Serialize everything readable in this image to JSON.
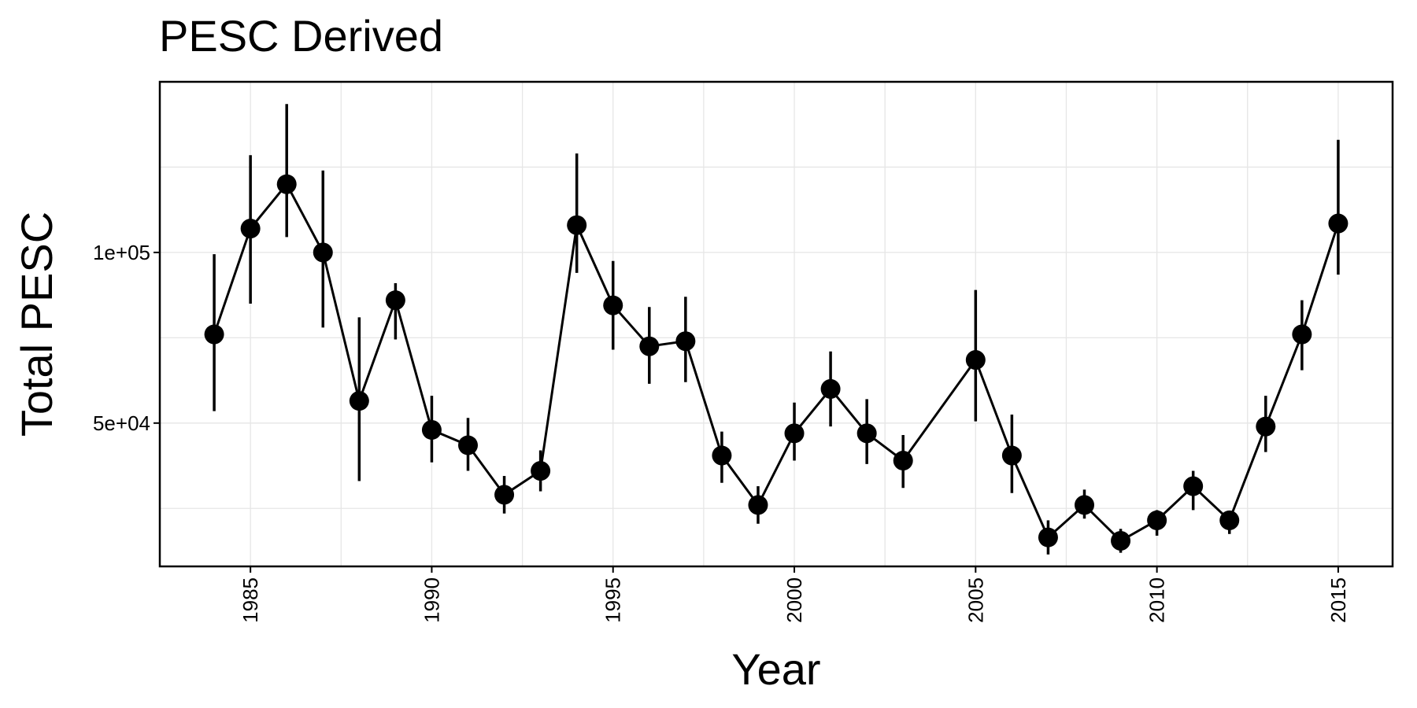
{
  "chart_data": {
    "type": "line",
    "title": "PESC Derived",
    "xlabel": "Year",
    "ylabel": "Total PESC",
    "xlim": [
      1982.5,
      2016.5
    ],
    "ylim": [
      8000,
      150000
    ],
    "x_ticks": [
      1985,
      1990,
      1995,
      2000,
      2005,
      2010,
      2015
    ],
    "y_ticks": [
      50000,
      100000
    ],
    "y_tick_labels": [
      "5e+04",
      "1e+05"
    ],
    "x_minor_gridlines": [
      1987.5,
      1992.5,
      1997.5,
      2002.5,
      2007.5,
      2012.5
    ],
    "y_minor_gridlines": [
      25000,
      75000,
      125000
    ],
    "grid": true,
    "legend": "none",
    "colors": {
      "series": "#000000",
      "grid": "#e6e6e6",
      "background": "#ffffff"
    },
    "series": [
      {
        "x": [
          1984,
          1985,
          1986,
          1987,
          1988,
          1989,
          1990,
          1991,
          1992,
          1993,
          1994,
          1995,
          1996,
          1997,
          1998,
          1999,
          2000,
          2001,
          2002,
          2003,
          2005,
          2006,
          2007,
          2008,
          2009,
          2010,
          2011,
          2012,
          2013,
          2014,
          2015
        ],
        "y": [
          76000,
          107000,
          120000,
          100000,
          56500,
          86000,
          48000,
          43500,
          29000,
          36000,
          108000,
          84500,
          72500,
          74000,
          40500,
          26000,
          47000,
          60000,
          47000,
          39000,
          68500,
          40500,
          16500,
          26000,
          15500,
          21500,
          31500,
          21500,
          49000,
          76000,
          108500
        ],
        "lower": [
          53500,
          85000,
          104500,
          78000,
          33000,
          74500,
          38500,
          36000,
          23500,
          30000,
          94000,
          71500,
          61500,
          62000,
          32500,
          20500,
          39000,
          49000,
          38000,
          31000,
          50500,
          29500,
          11500,
          22000,
          12000,
          17000,
          24500,
          17500,
          41500,
          65500,
          93500
        ],
        "upper": [
          99500,
          128500,
          143500,
          124000,
          81000,
          91000,
          58000,
          51500,
          34500,
          42000,
          129000,
          97500,
          84000,
          87000,
          47500,
          31500,
          56000,
          71000,
          57000,
          46500,
          89000,
          52500,
          21500,
          30500,
          19000,
          24500,
          36000,
          24000,
          58000,
          86000,
          133000
        ]
      }
    ]
  }
}
